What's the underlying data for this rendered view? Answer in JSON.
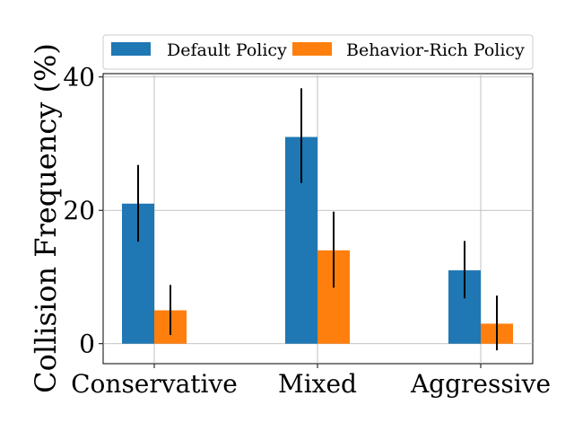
{
  "chart_data": {
    "type": "bar",
    "title": "",
    "xlabel": "",
    "ylabel": "Collision Frequency (%)",
    "ylim": [
      -3,
      40.5
    ],
    "yticks": [
      0,
      20,
      40
    ],
    "grid": true,
    "legend_position": "top",
    "categories": [
      "Conservative",
      "Mixed",
      "Aggressive"
    ],
    "series": [
      {
        "name": "Default Policy",
        "color": "#1f77b4",
        "values": [
          21,
          31,
          11
        ],
        "error_low": [
          15.3,
          24.1,
          6.8
        ],
        "error_high": [
          26.8,
          38.3,
          15.4
        ]
      },
      {
        "name": "Behavior-Rich Policy",
        "color": "#ff7f0e",
        "values": [
          5,
          14,
          3
        ],
        "error_low": [
          1.3,
          8.4,
          -1
        ],
        "error_high": [
          8.8,
          19.8,
          7.2
        ]
      }
    ]
  }
}
